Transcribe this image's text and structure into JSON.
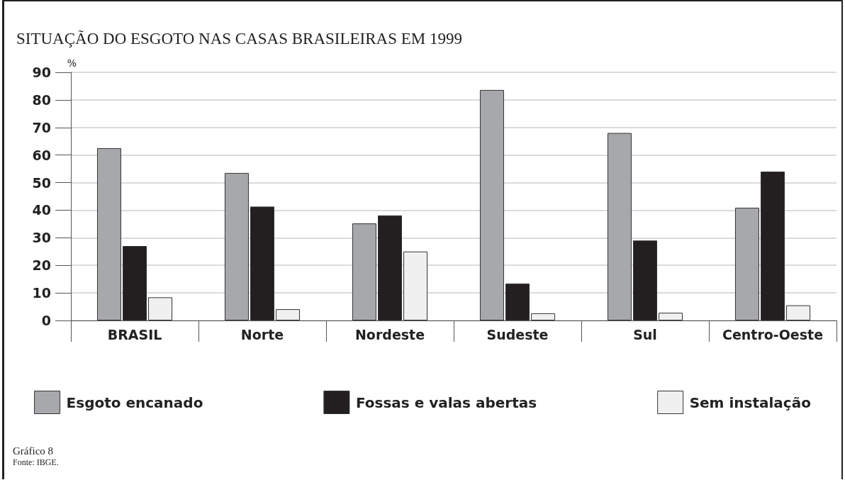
{
  "chart_data": {
    "type": "bar",
    "title": "SITUAÇÃO DO ESGOTO NAS CASAS BRASILEIRAS EM 1999",
    "ylabel": "%",
    "categories": [
      "BRASIL",
      "Norte",
      "Nordeste",
      "Sudeste",
      "Sul",
      "Centro-Oeste"
    ],
    "series": [
      {
        "name": "Esgoto encanado",
        "color": "#a7a8ab",
        "values": [
          62.5,
          53.5,
          35.2,
          83.6,
          68.0,
          40.9
        ]
      },
      {
        "name": "Fossas e valas abertas",
        "color": "#231f20",
        "values": [
          27.0,
          41.3,
          38.1,
          13.4,
          29.0,
          54.0
        ]
      },
      {
        "name": "Sem instalação",
        "color": "#f0f0f0",
        "values": [
          8.4,
          4.1,
          25.0,
          2.6,
          2.8,
          5.5
        ]
      }
    ],
    "ylim": [
      0,
      90
    ],
    "yticks": [
      0,
      10,
      20,
      30,
      40,
      50,
      60,
      70,
      80,
      90
    ],
    "grid": "y",
    "legend": "bottom",
    "annotations": [
      "Gráfico 8",
      "Fonte: IBGE."
    ]
  }
}
